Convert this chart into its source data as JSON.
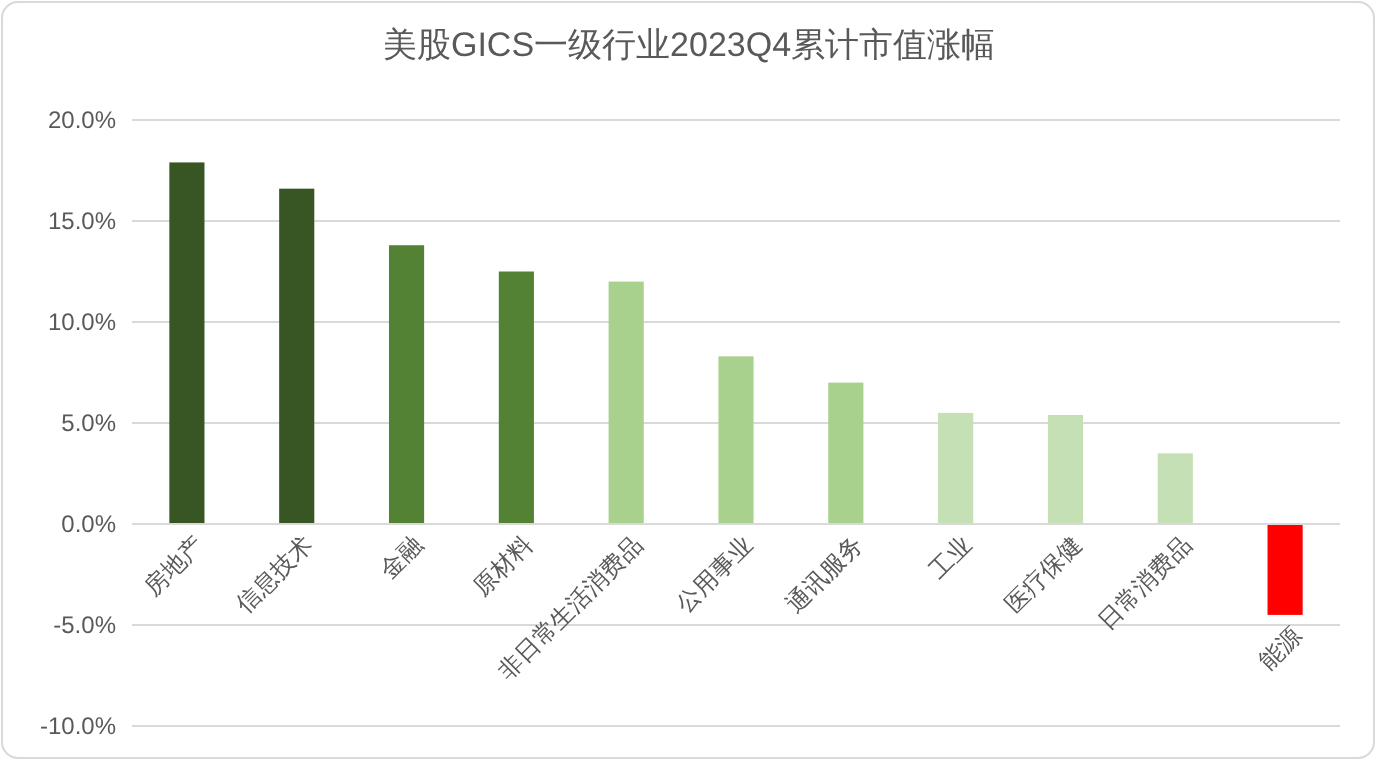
{
  "chart_data": {
    "type": "bar",
    "title": "美股GICS一级行业2023Q4累计市值涨幅",
    "categories": [
      "房地产",
      "信息技术",
      "金融",
      "原材料",
      "非日常生活消费品",
      "公用事业",
      "通讯服务",
      "工业",
      "医疗保健",
      "日常消费品",
      "能源"
    ],
    "values": [
      17.9,
      16.6,
      13.8,
      12.5,
      12.0,
      8.3,
      7.0,
      5.5,
      5.4,
      3.5,
      -4.5
    ],
    "colors": [
      "#375623",
      "#375623",
      "#548235",
      "#548235",
      "#a9d18e",
      "#a9d18e",
      "#a9d18e",
      "#c5e0b4",
      "#c5e0b4",
      "#c5e0b4",
      "#ff0000"
    ],
    "ylim": [
      -10,
      20
    ],
    "yticks": [
      {
        "value": -10,
        "label": "-10.0%"
      },
      {
        "value": -5,
        "label": "-5.0%"
      },
      {
        "value": 0,
        "label": "0.0%"
      },
      {
        "value": 5,
        "label": "5.0%"
      },
      {
        "value": 10,
        "label": "10.0%"
      },
      {
        "value": 15,
        "label": "15.0%"
      },
      {
        "value": 20,
        "label": "20.0%"
      }
    ],
    "grid": "y"
  }
}
